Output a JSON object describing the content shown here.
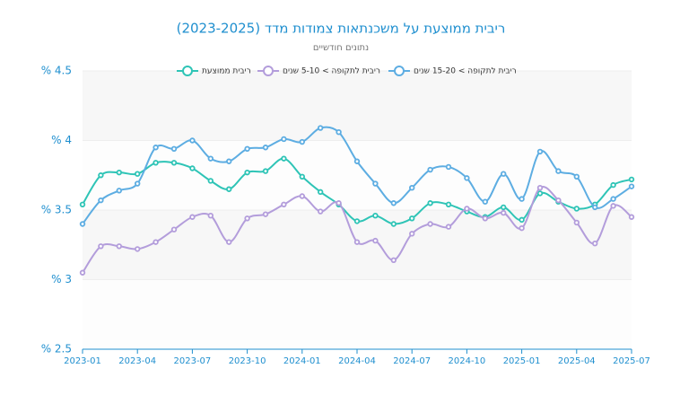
{
  "chart_data": {
    "type": "line",
    "title": "ריבית ממוצעת על משכנתאות צמודות מדד (2023-2025)",
    "subtitle": "נתונים חודשיים",
    "categories": [
      "2023-01",
      null,
      null,
      "2023-04",
      null,
      null,
      "2023-07",
      null,
      null,
      "2023-10",
      null,
      null,
      "2024-01",
      null,
      null,
      "2024-04",
      null,
      null,
      "2024-07",
      null,
      null,
      "2024-10",
      null,
      null,
      "2025-01",
      null,
      null,
      "2025-04",
      null,
      null,
      "2025-07"
    ],
    "ylim": [
      2.5,
      4.5
    ],
    "yticks": [
      {
        "value": 2.5,
        "label": "% 2.5"
      },
      {
        "value": 3,
        "label": "% 3"
      },
      {
        "value": 3.5,
        "label": "% 3.5"
      },
      {
        "value": 4,
        "label": "% 4"
      },
      {
        "value": 4.5,
        "label": "% 4.5"
      }
    ],
    "series": [
      {
        "name": "ריבית ממוצעת",
        "color": "#2ec4b6",
        "values": [
          3.54,
          3.75,
          3.77,
          3.76,
          3.84,
          3.84,
          3.8,
          3.71,
          3.65,
          3.77,
          3.78,
          3.87,
          3.74,
          3.63,
          3.54,
          3.42,
          3.46,
          3.4,
          3.44,
          3.55,
          3.54,
          3.49,
          3.45,
          3.52,
          3.43,
          3.62,
          3.56,
          3.51,
          3.54,
          3.68,
          3.72
        ]
      },
      {
        "name": "ריבית לתקופה > 5-10 שנים",
        "color": "#b39ddb",
        "values": [
          3.05,
          3.24,
          3.24,
          3.22,
          3.27,
          3.36,
          3.45,
          3.46,
          3.27,
          3.44,
          3.47,
          3.54,
          3.6,
          3.49,
          3.55,
          3.27,
          3.28,
          3.14,
          3.33,
          3.4,
          3.38,
          3.51,
          3.44,
          3.48,
          3.37,
          3.66,
          3.57,
          3.41,
          3.26,
          3.53,
          3.45
        ]
      },
      {
        "name": "ריבית לתקופה > 15-20 שנים",
        "color": "#5dade2",
        "values": [
          3.4,
          3.57,
          3.64,
          3.69,
          3.95,
          3.94,
          4.0,
          3.87,
          3.85,
          3.94,
          3.95,
          4.01,
          3.99,
          4.09,
          4.06,
          3.85,
          3.69,
          3.55,
          3.66,
          3.79,
          3.81,
          3.73,
          3.56,
          3.76,
          3.58,
          3.92,
          3.78,
          3.74,
          3.52,
          3.58,
          3.67
        ]
      }
    ]
  }
}
